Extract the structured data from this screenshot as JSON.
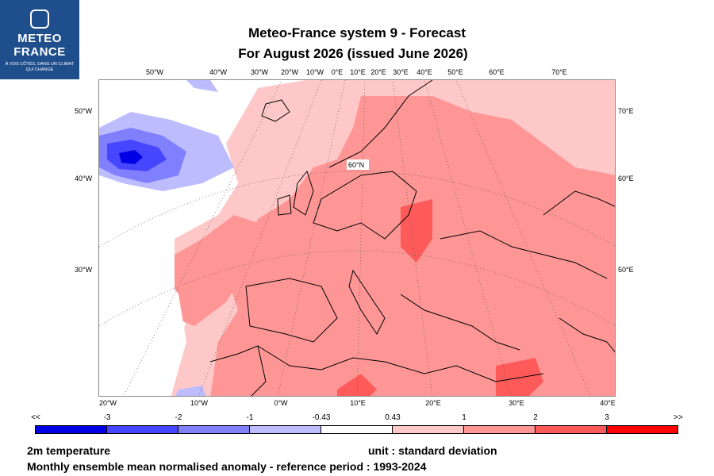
{
  "logo": {
    "line1": "METEO",
    "line2": "FRANCE",
    "tagline": "À VOS CÔTÉS, DANS UN CLIMAT QUI CHANGE"
  },
  "title": {
    "line1": "Meteo-France system 9  -  Forecast",
    "line2": "For August 2026      (issued June 2026)"
  },
  "graticule": {
    "top_labels": [
      "50°W",
      "40°W",
      "30°W",
      "20°W",
      "10°W",
      "0°E",
      "10°E",
      "20°E",
      "30°E",
      "40°E",
      "50°E",
      "60°E",
      "70°E"
    ],
    "bottom_labels": [
      "20°W",
      "10°W",
      "0°W",
      "10°E",
      "20°E",
      "30°E",
      "40°E"
    ],
    "left_labels": [
      "50°W",
      "40°W",
      "30°W"
    ],
    "right_labels": [
      "70°E",
      "60°E",
      "50°E"
    ],
    "inner_label": "60°N"
  },
  "legend": {
    "tick_labels": [
      "<<",
      "-3",
      "-2",
      "-1",
      "-0.43",
      "0.43",
      "1",
      "2",
      "3",
      ">>"
    ],
    "colors": [
      "#0000e6",
      "#4646ff",
      "#8080ff",
      "#bcbcff",
      "#ffffff",
      "#ffc8c8",
      "#ff9696",
      "#ff5a5a",
      "#ff0000"
    ]
  },
  "footer": {
    "variable": "2m temperature",
    "unit": "unit : standard deviation",
    "description": "Monthly ensemble mean normalised anomaly - reference period : 1993-2024"
  }
}
